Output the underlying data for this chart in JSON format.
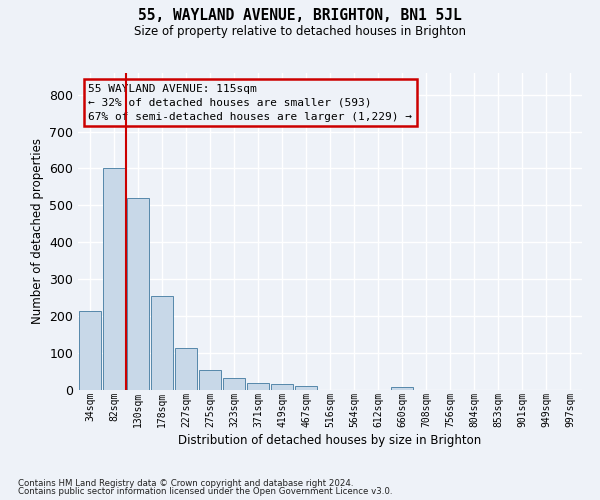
{
  "title": "55, WAYLAND AVENUE, BRIGHTON, BN1 5JL",
  "subtitle": "Size of property relative to detached houses in Brighton",
  "xlabel": "Distribution of detached houses by size in Brighton",
  "ylabel": "Number of detached properties",
  "bin_labels": [
    "34sqm",
    "82sqm",
    "130sqm",
    "178sqm",
    "227sqm",
    "275sqm",
    "323sqm",
    "371sqm",
    "419sqm",
    "467sqm",
    "516sqm",
    "564sqm",
    "612sqm",
    "660sqm",
    "708sqm",
    "756sqm",
    "804sqm",
    "853sqm",
    "901sqm",
    "949sqm",
    "997sqm"
  ],
  "bar_heights": [
    215,
    600,
    520,
    255,
    115,
    55,
    32,
    18,
    15,
    12,
    0,
    0,
    0,
    8,
    0,
    0,
    0,
    0,
    0,
    0,
    0
  ],
  "bar_color": "#c8d8e8",
  "bar_edge_color": "#5588aa",
  "highlight_color": "#cc0000",
  "red_line_x": 1.5,
  "ylim": [
    0,
    860
  ],
  "yticks": [
    0,
    100,
    200,
    300,
    400,
    500,
    600,
    700,
    800
  ],
  "annotation_line1": "55 WAYLAND AVENUE: 115sqm",
  "annotation_line2": "← 32% of detached houses are smaller (593)",
  "annotation_line3": "67% of semi-detached houses are larger (1,229) →",
  "footer1": "Contains HM Land Registry data © Crown copyright and database right 2024.",
  "footer2": "Contains public sector information licensed under the Open Government Licence v3.0.",
  "bg_color": "#eef2f8",
  "grid_color": "#ffffff",
  "annotation_box_color": "#cc0000"
}
